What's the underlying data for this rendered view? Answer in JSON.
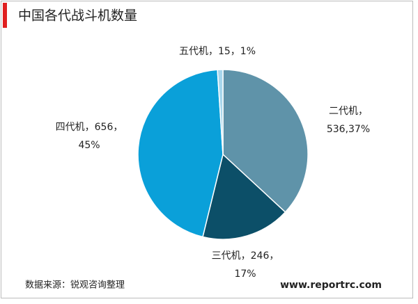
{
  "chart_data": {
    "type": "pie",
    "title": "中国各代战斗机数量",
    "categories": [
      "二代机",
      "三代机",
      "四代机",
      "五代机"
    ],
    "values": [
      536,
      246,
      656,
      15
    ],
    "colors": [
      "#5f93a9",
      "#0c4f68",
      "#0aa0d9",
      "#a7d6ec"
    ],
    "labels": [
      [
        "二代机，",
        "536,37%"
      ],
      [
        "三代机，246，",
        "17%"
      ],
      [
        "四代机，656，",
        "45%"
      ],
      [
        "五代机，15，1%"
      ]
    ],
    "source": "数据来源：锐观咨询整理",
    "website": "www.reportrc.com"
  }
}
